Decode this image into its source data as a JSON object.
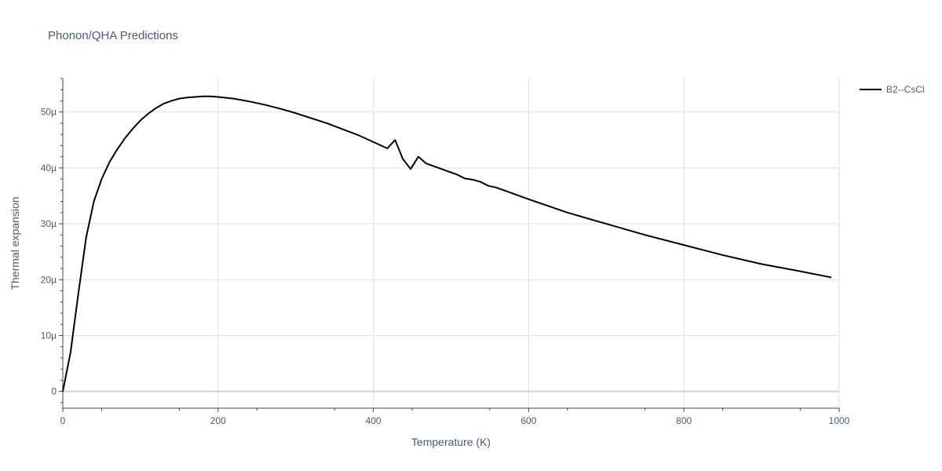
{
  "chart_data": {
    "type": "line",
    "title": "Phonon/QHA Predictions",
    "xlabel": "Temperature (K)",
    "ylabel": "Thermal expansion",
    "xlim": [
      0,
      1000
    ],
    "ylim": [
      -3,
      56
    ],
    "x_ticks": [
      0,
      200,
      400,
      600,
      800,
      1000
    ],
    "x_tick_labels": [
      "0",
      "200",
      "400",
      "600",
      "800",
      "1000"
    ],
    "y_ticks": [
      0,
      10,
      20,
      30,
      40,
      50
    ],
    "y_tick_labels": [
      "0",
      "10µ",
      "20µ",
      "30µ",
      "40µ",
      "50µ"
    ],
    "grid": true,
    "legend_position": "top-right",
    "series": [
      {
        "name": "B2--CsCl",
        "color": "#000000",
        "x": [
          0,
          10,
          20,
          30,
          40,
          50,
          60,
          70,
          80,
          90,
          100,
          110,
          120,
          130,
          140,
          150,
          160,
          170,
          180,
          190,
          200,
          220,
          240,
          260,
          280,
          300,
          340,
          380,
          418,
          428,
          438,
          448,
          458,
          468,
          478,
          488,
          498,
          508,
          518,
          528,
          538,
          548,
          558,
          568,
          578,
          600,
          650,
          700,
          750,
          800,
          850,
          900,
          950,
          990
        ],
        "y": [
          0,
          7.0,
          17.5,
          27.5,
          34.0,
          38.0,
          41.0,
          43.3,
          45.3,
          47.0,
          48.5,
          49.7,
          50.7,
          51.5,
          52.0,
          52.4,
          52.6,
          52.7,
          52.8,
          52.8,
          52.7,
          52.4,
          51.9,
          51.3,
          50.6,
          49.8,
          48.0,
          45.9,
          43.5,
          45.0,
          41.6,
          39.8,
          42.0,
          40.8,
          40.3,
          39.8,
          39.3,
          38.8,
          38.1,
          37.9,
          37.5,
          36.8,
          36.5,
          36.0,
          35.5,
          34.4,
          32.0,
          30.0,
          28.0,
          26.2,
          24.4,
          22.8,
          21.5,
          20.4
        ]
      }
    ]
  }
}
